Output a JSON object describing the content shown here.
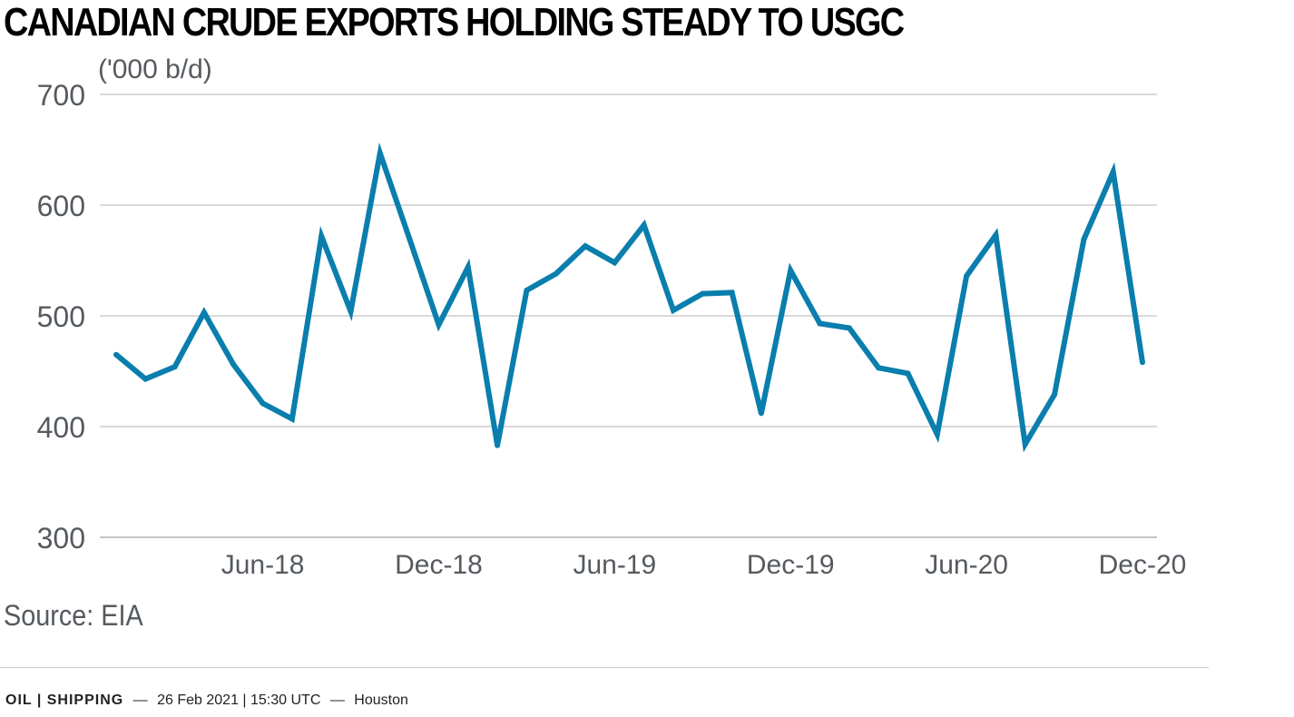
{
  "chart_data": {
    "type": "line",
    "title": "CANADIAN CRUDE EXPORTS HOLDING STEADY TO USGC",
    "ylabel": "('000 b/d)",
    "ylim": [
      300,
      700
    ],
    "yticks": [
      300,
      400,
      500,
      600,
      700
    ],
    "xticks": [
      "Jun-18",
      "Dec-18",
      "Jun-19",
      "Dec-19",
      "Jun-20",
      "Dec-20"
    ],
    "grid": true,
    "series": [
      {
        "color": "#0a7ead",
        "x": [
          "Jan-18",
          "Feb-18",
          "Mar-18",
          "Apr-18",
          "May-18",
          "Jun-18",
          "Jul-18",
          "Aug-18",
          "Sep-18",
          "Oct-18",
          "Nov-18",
          "Dec-18",
          "Jan-19",
          "Feb-19",
          "Mar-19",
          "Apr-19",
          "May-19",
          "Jun-19",
          "Jul-19",
          "Aug-19",
          "Sep-19",
          "Oct-19",
          "Nov-19",
          "Dec-19",
          "Jan-20",
          "Feb-20",
          "Mar-20",
          "Apr-20",
          "May-20",
          "Jun-20",
          "Jul-20",
          "Aug-20",
          "Sep-20",
          "Oct-20",
          "Nov-20",
          "Dec-20"
        ],
        "values": [
          465,
          443,
          454,
          503,
          456,
          421,
          407,
          572,
          504,
          647,
          570,
          492,
          544,
          383,
          523,
          538,
          563,
          548,
          582,
          505,
          520,
          521,
          412,
          541,
          493,
          489,
          453,
          448,
          393,
          536,
          573,
          384,
          429,
          569,
          630,
          458
        ]
      }
    ]
  },
  "source": "Source: EIA",
  "footer": {
    "tags": "OIL | SHIPPING",
    "dash1": "—",
    "datetime": "26 Feb 2021 | 15:30 UTC",
    "dash2": "—",
    "location": "Houston"
  }
}
